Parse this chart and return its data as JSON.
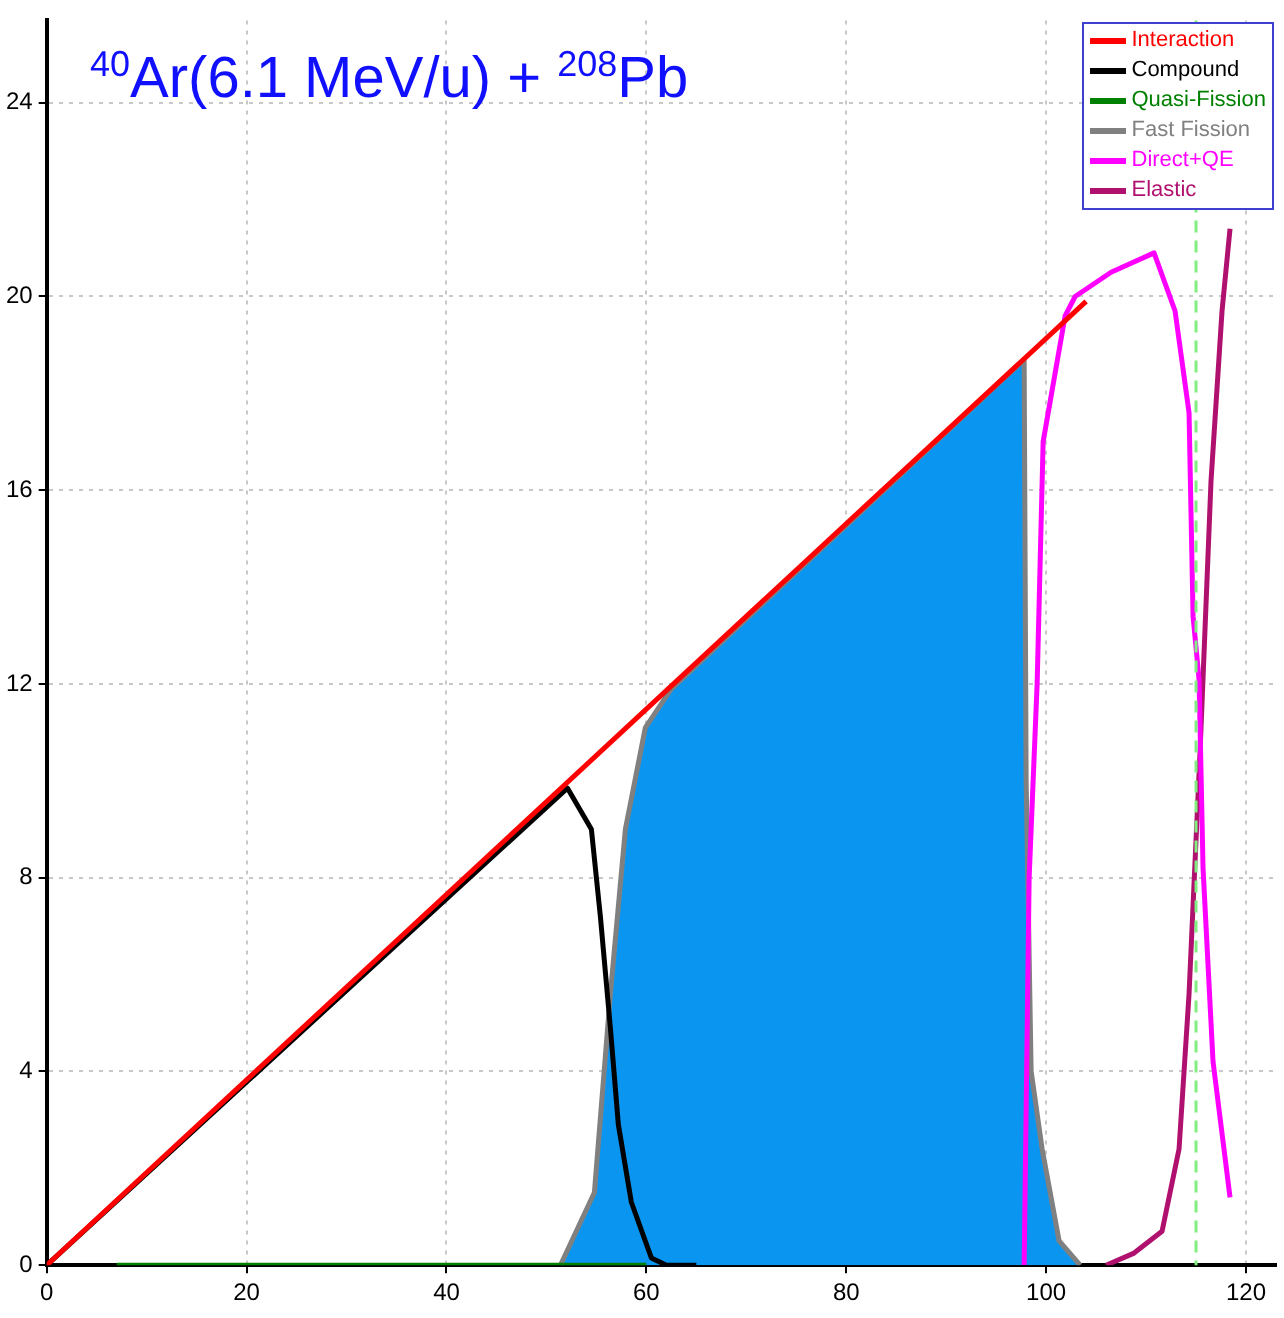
{
  "chart_data": {
    "type": "line",
    "title": "$^{40}$Ar(6.1 MeV/u) + $^{208}$Pb",
    "xlim": [
      0,
      123
    ],
    "xticks": [
      0,
      20,
      40,
      60,
      80,
      100,
      120
    ],
    "ylim": [
      0,
      25.7
    ],
    "yticks": [
      0,
      4,
      8,
      12,
      16,
      20,
      24
    ],
    "grid": true,
    "legend": "top right",
    "marker": "none",
    "line_style": "solid",
    "series": [
      {
        "name": "Interaction",
        "color": "#ff0000",
        "x": [
          0,
          104
        ],
        "values": [
          0,
          19.9
        ]
      },
      {
        "name": "Compound",
        "color": "#000000",
        "x": [
          0,
          52.1,
          54.5,
          55.4,
          56.4,
          57.2,
          58.5,
          60.5,
          62,
          65
        ],
        "values": [
          0,
          9.85,
          9.0,
          7.2,
          4.9,
          2.9,
          1.3,
          0.15,
          0,
          0
        ]
      },
      {
        "name": "Quasi-Fission",
        "color": "#008000",
        "x": [
          7,
          60
        ],
        "values": [
          0,
          0
        ]
      },
      {
        "name": "Fast Fission",
        "type": "area",
        "color": "#808080",
        "x": [
          51.4,
          54.8,
          56.4,
          57.9,
          59.9,
          62.5,
          97.8,
          98,
          98.5,
          99.6,
          101.3,
          103.4
        ],
        "values": [
          0,
          1.5,
          5.6,
          9.0,
          11.1,
          11.9,
          18.7,
          10,
          4,
          2.4,
          0.5,
          0
        ]
      },
      {
        "name": "Direct+QE",
        "color": "#ff00ff",
        "x": [
          97.8,
          98.3,
          99.1,
          99.7,
          101.9,
          102.9,
          106.5,
          110.8,
          112.9,
          114.3,
          114.7,
          115.3,
          115.7,
          116.7,
          118.4
        ],
        "values": [
          0,
          8,
          12,
          17,
          19.6,
          20,
          20.5,
          20.9,
          19.7,
          17.6,
          13.4,
          12.1,
          8.2,
          4.2,
          1.4
        ]
      },
      {
        "name": "Elastic",
        "color": "#b0106e",
        "x": [
          106,
          108.8,
          111.6,
          113.3,
          114.3,
          115.4,
          116.5,
          117.6,
          118.4
        ],
        "values": [
          0,
          0.25,
          0.7,
          2.4,
          5.6,
          10.6,
          16.2,
          19.7,
          21.4
        ]
      }
    ],
    "ref_lines": [
      {
        "axis": "x",
        "value": 115,
        "color": "#80ee80",
        "line_style": "dashed"
      }
    ]
  }
}
